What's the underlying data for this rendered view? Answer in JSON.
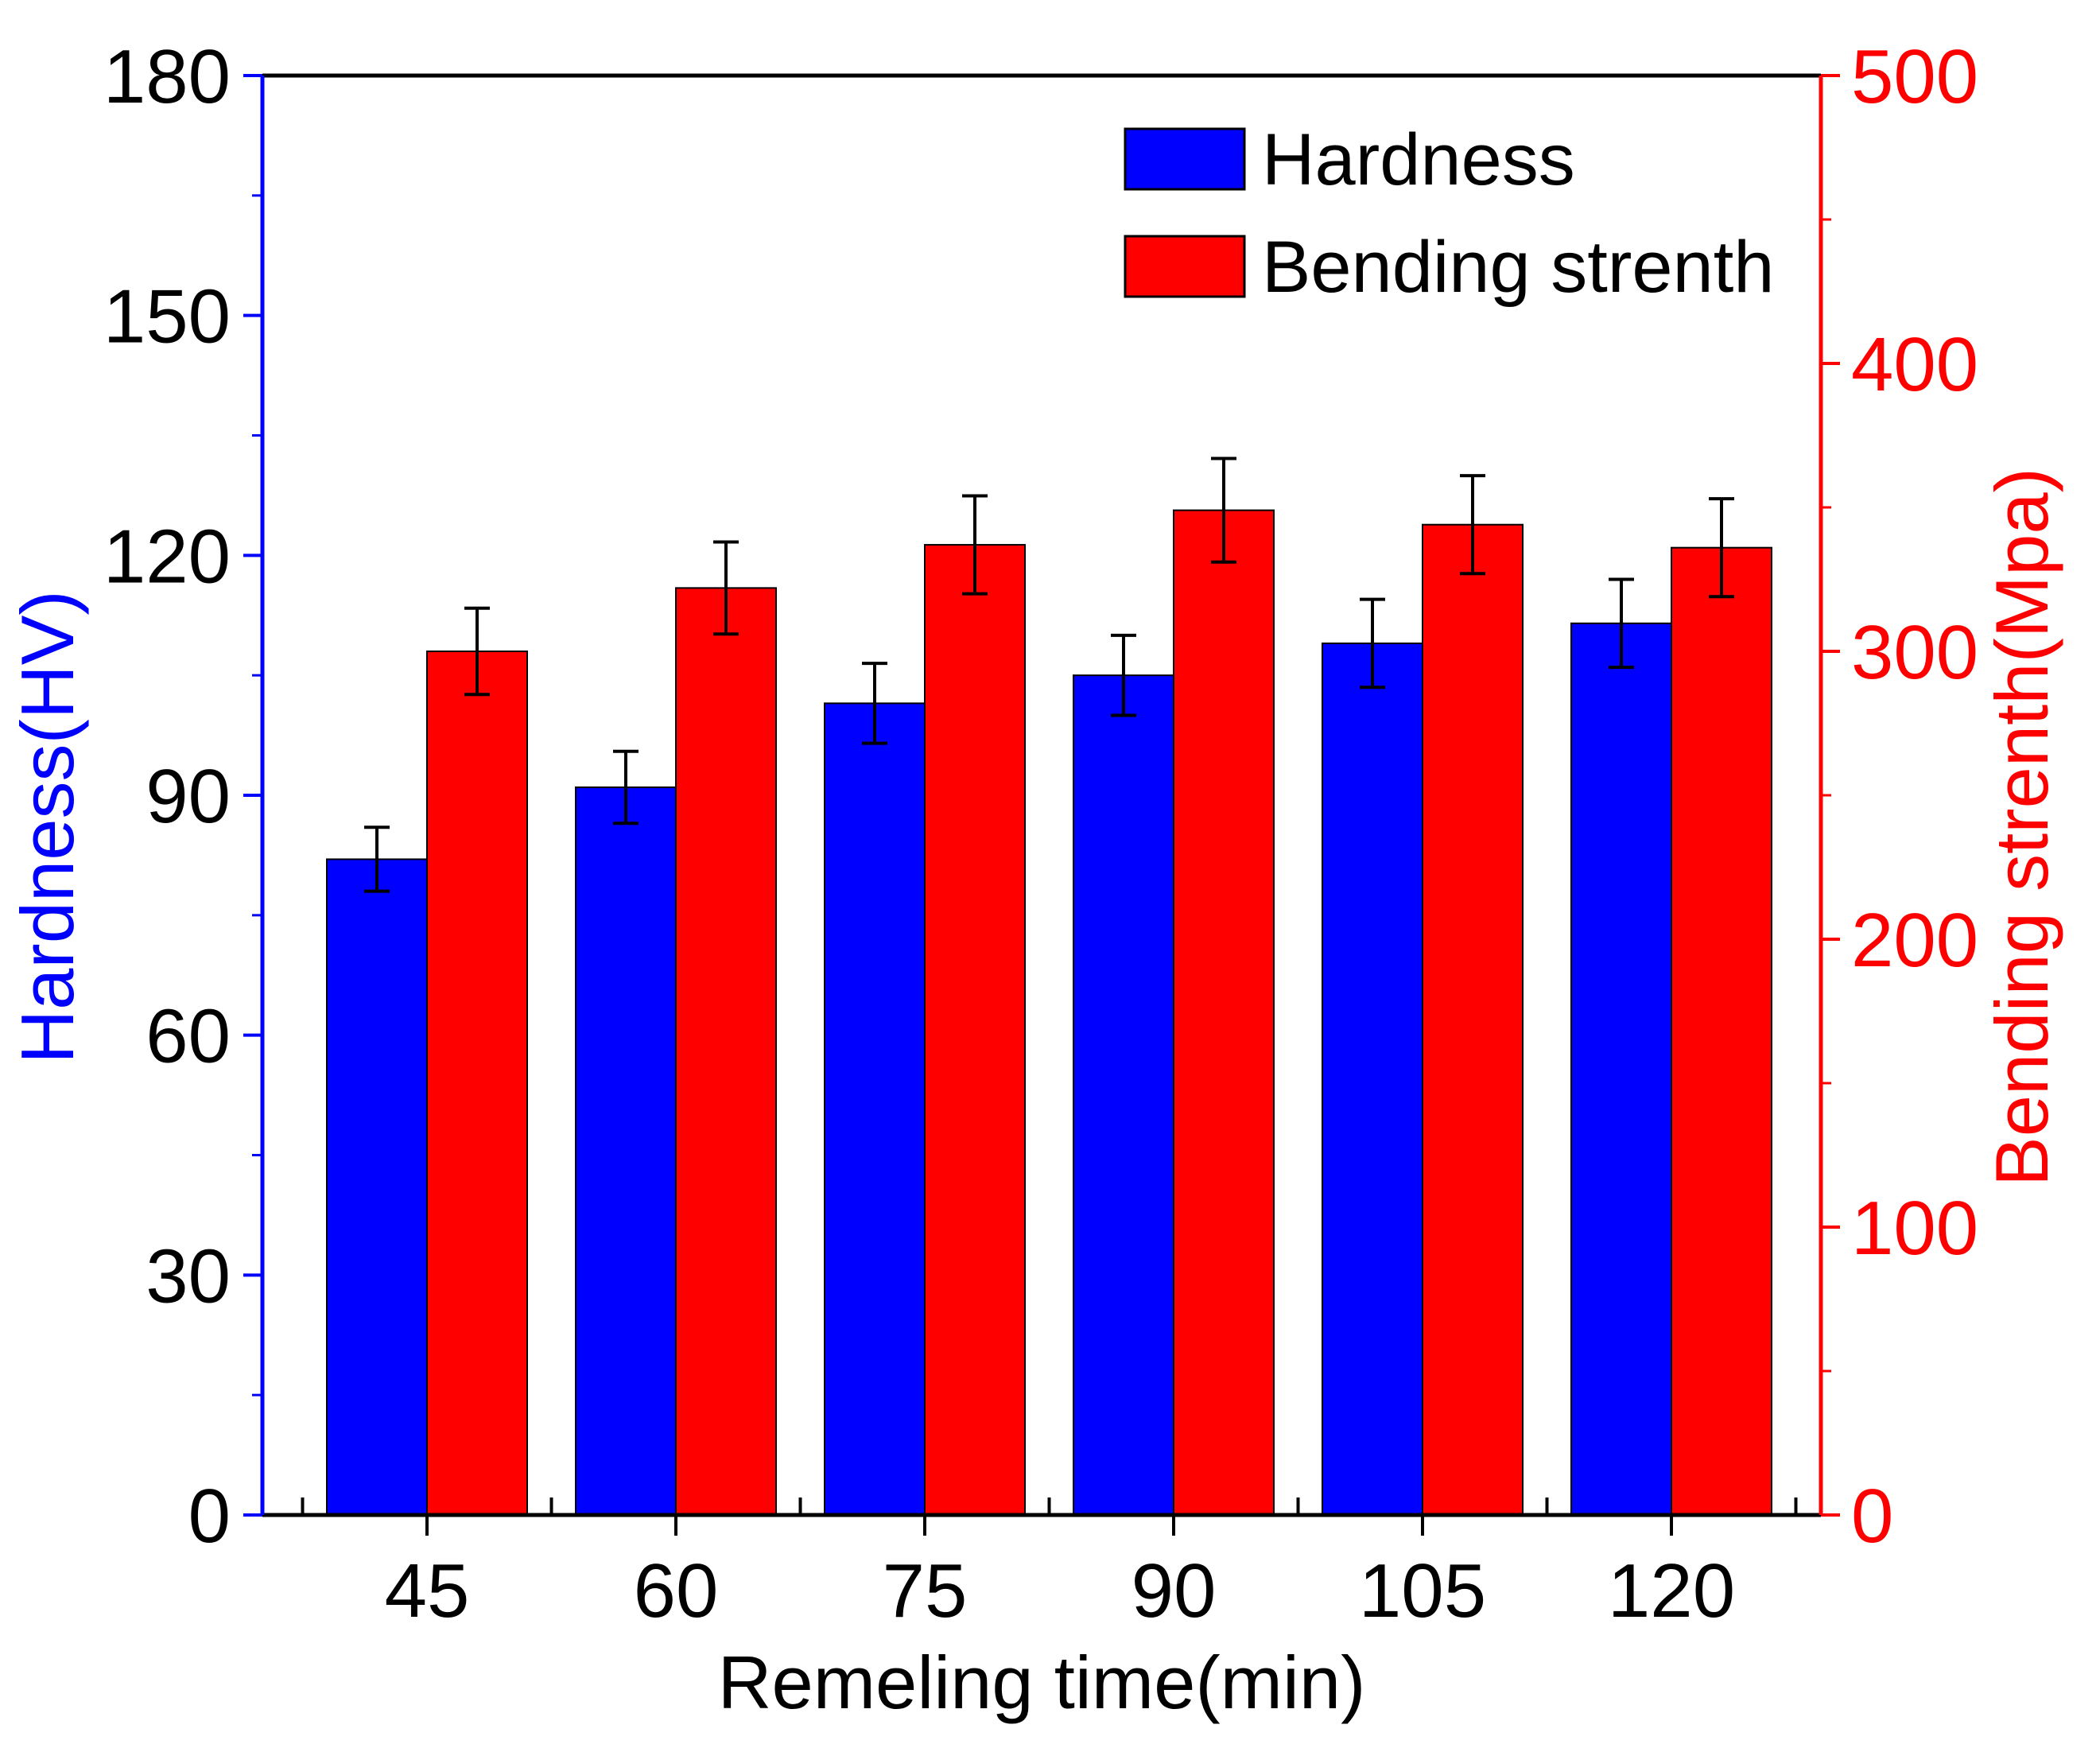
{
  "chart_data": {
    "type": "bar",
    "categories": [
      "45",
      "60",
      "75",
      "90",
      "105",
      "120"
    ],
    "xlabel": "Remeling time(min)",
    "series": [
      {
        "name": "Hardness",
        "axis": "left",
        "color": "#0000ff",
        "values": [
          82,
          91,
          101.5,
          105,
          109,
          111.5
        ],
        "errors": [
          4,
          4.5,
          5,
          5,
          5.5,
          5.5
        ]
      },
      {
        "name": "Bending strenth",
        "axis": "right",
        "color": "#ff0000",
        "values": [
          300,
          322,
          337,
          349,
          344,
          336
        ],
        "errors": [
          15,
          16,
          17,
          18,
          17,
          17
        ]
      }
    ],
    "y_left": {
      "label": "Hardness(HV)",
      "ylim": [
        0,
        180
      ],
      "ticks": [
        0,
        30,
        60,
        90,
        120,
        150,
        180
      ],
      "color": "#0000ff"
    },
    "y_right": {
      "label": "Bending strenth(Mpa)",
      "ylim": [
        0,
        500
      ],
      "ticks": [
        0,
        100,
        200,
        300,
        400,
        500
      ],
      "color": "#ff0000"
    },
    "legend": {
      "position": "top-right",
      "items": [
        "Hardness",
        "Bending strenth"
      ]
    },
    "grid": false
  }
}
